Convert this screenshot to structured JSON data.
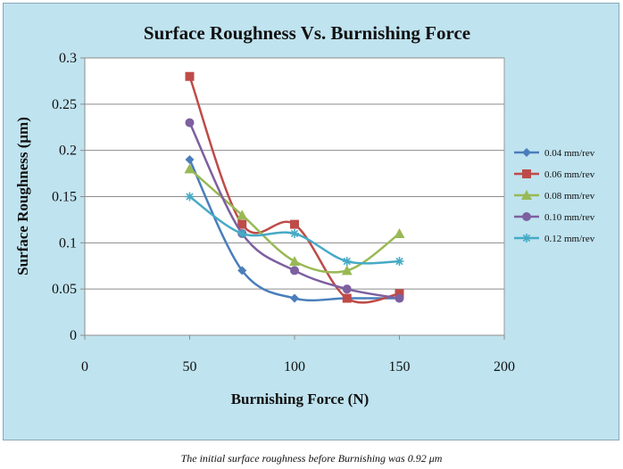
{
  "caption": "The initial surface roughness before Burnishing was 0.92 μm",
  "chart_data": {
    "type": "line",
    "title": "Surface Roughness Vs.  Burnishing Force",
    "xlabel": "Burnishing Force (N)",
    "ylabel": "Surface Roughness (μm)",
    "xlim": [
      0,
      200
    ],
    "ylim": [
      0,
      0.3
    ],
    "xticks": [
      0,
      50,
      100,
      150,
      200
    ],
    "xtick_labels": [
      "0",
      "50",
      "100",
      "150",
      "200"
    ],
    "yticks": [
      0,
      0.05,
      0.1,
      0.15,
      0.2,
      0.25,
      0.3
    ],
    "ytick_labels": [
      "0",
      "0.05",
      "0.1",
      "0.15",
      "0.2",
      "0.25",
      "0.3"
    ],
    "grid": "horizontal",
    "legend_position": "right",
    "x": [
      50,
      75,
      100,
      125,
      150
    ],
    "series": [
      {
        "name": "0.04 mm/rev",
        "values": [
          0.19,
          0.07,
          0.04,
          0.04,
          0.04
        ],
        "color": "#4a7ebb",
        "marker": "diamond"
      },
      {
        "name": "0.06 mm/rev",
        "values": [
          0.28,
          0.12,
          0.12,
          0.04,
          0.045
        ],
        "color": "#be4b48",
        "marker": "square"
      },
      {
        "name": "0.08 mm/rev",
        "values": [
          0.18,
          0.13,
          0.08,
          0.07,
          0.11
        ],
        "color": "#98b954",
        "marker": "triangle"
      },
      {
        "name": "0.10 mm/rev",
        "values": [
          0.23,
          0.11,
          0.07,
          0.05,
          0.04
        ],
        "color": "#7d60a0",
        "marker": "circle"
      },
      {
        "name": "0.12 mm/rev",
        "values": [
          0.15,
          0.11,
          0.11,
          0.08,
          0.08
        ],
        "color": "#46aac5",
        "marker": "star"
      }
    ]
  }
}
